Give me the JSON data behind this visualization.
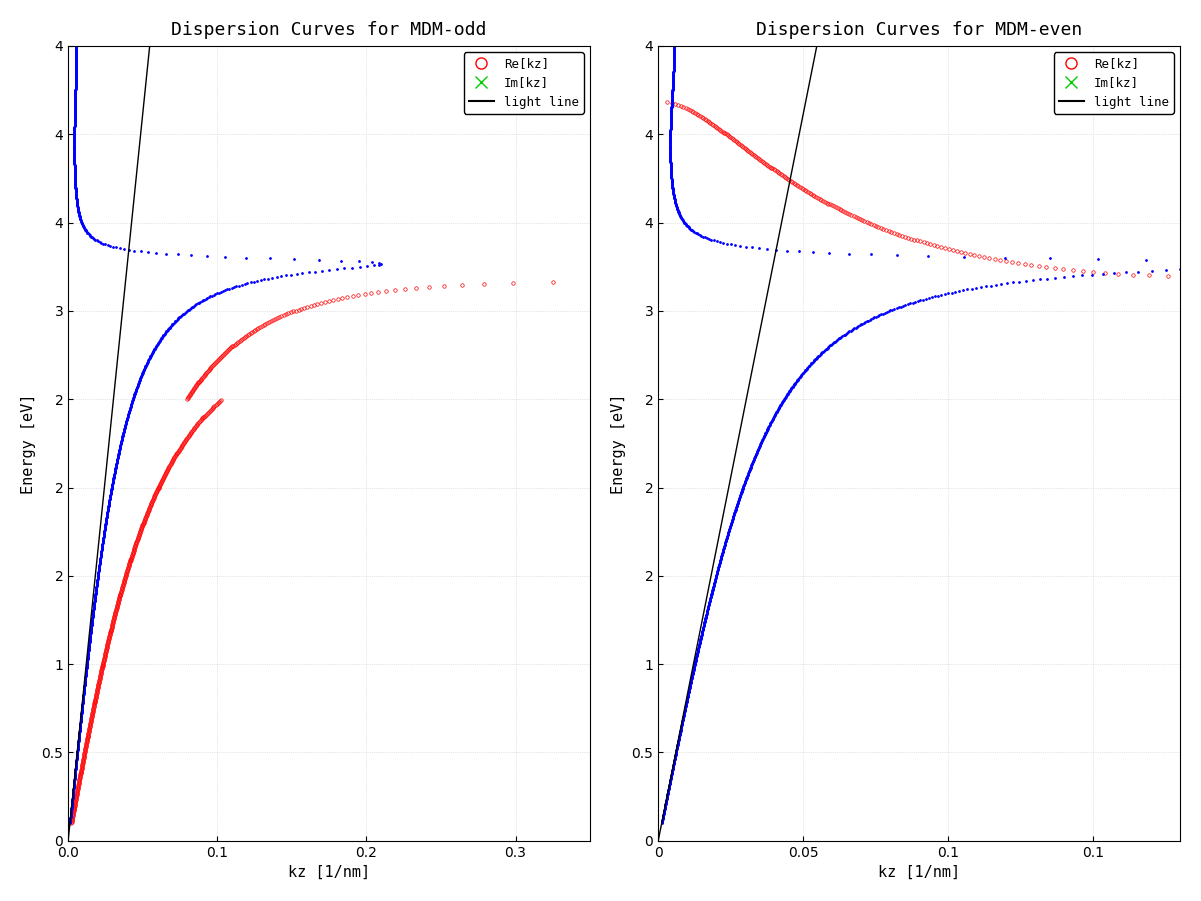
{
  "title_odd": "Dispersion Curves for MDM-odd",
  "title_even": "Dispersion Curves for MDM-even",
  "xlabel": "kz [1/nm]",
  "ylabel": "Energy [eV]",
  "xlim_odd": [
    0,
    0.35
  ],
  "xlim_even": [
    0,
    0.18
  ],
  "ylim": [
    0,
    4.5
  ],
  "yticks": [
    0,
    0.5,
    1.0,
    1.5,
    2.0,
    2.5,
    3.0,
    3.5,
    4.0,
    4.5
  ],
  "xticks_odd": [
    0,
    0.1,
    0.2,
    0.3
  ],
  "xticks_even": [
    0,
    0.05,
    0.1,
    0.15
  ],
  "color_re": "#ff0000",
  "color_im": "#00cc00",
  "color_blue": "#0000ff",
  "color_lightline": "#000000",
  "legend_re": "Re[kz]",
  "legend_im": "Im[kz]",
  "legend_ll": "light line",
  "bg_color": "#ffffff",
  "grid_color": "#cccccc"
}
